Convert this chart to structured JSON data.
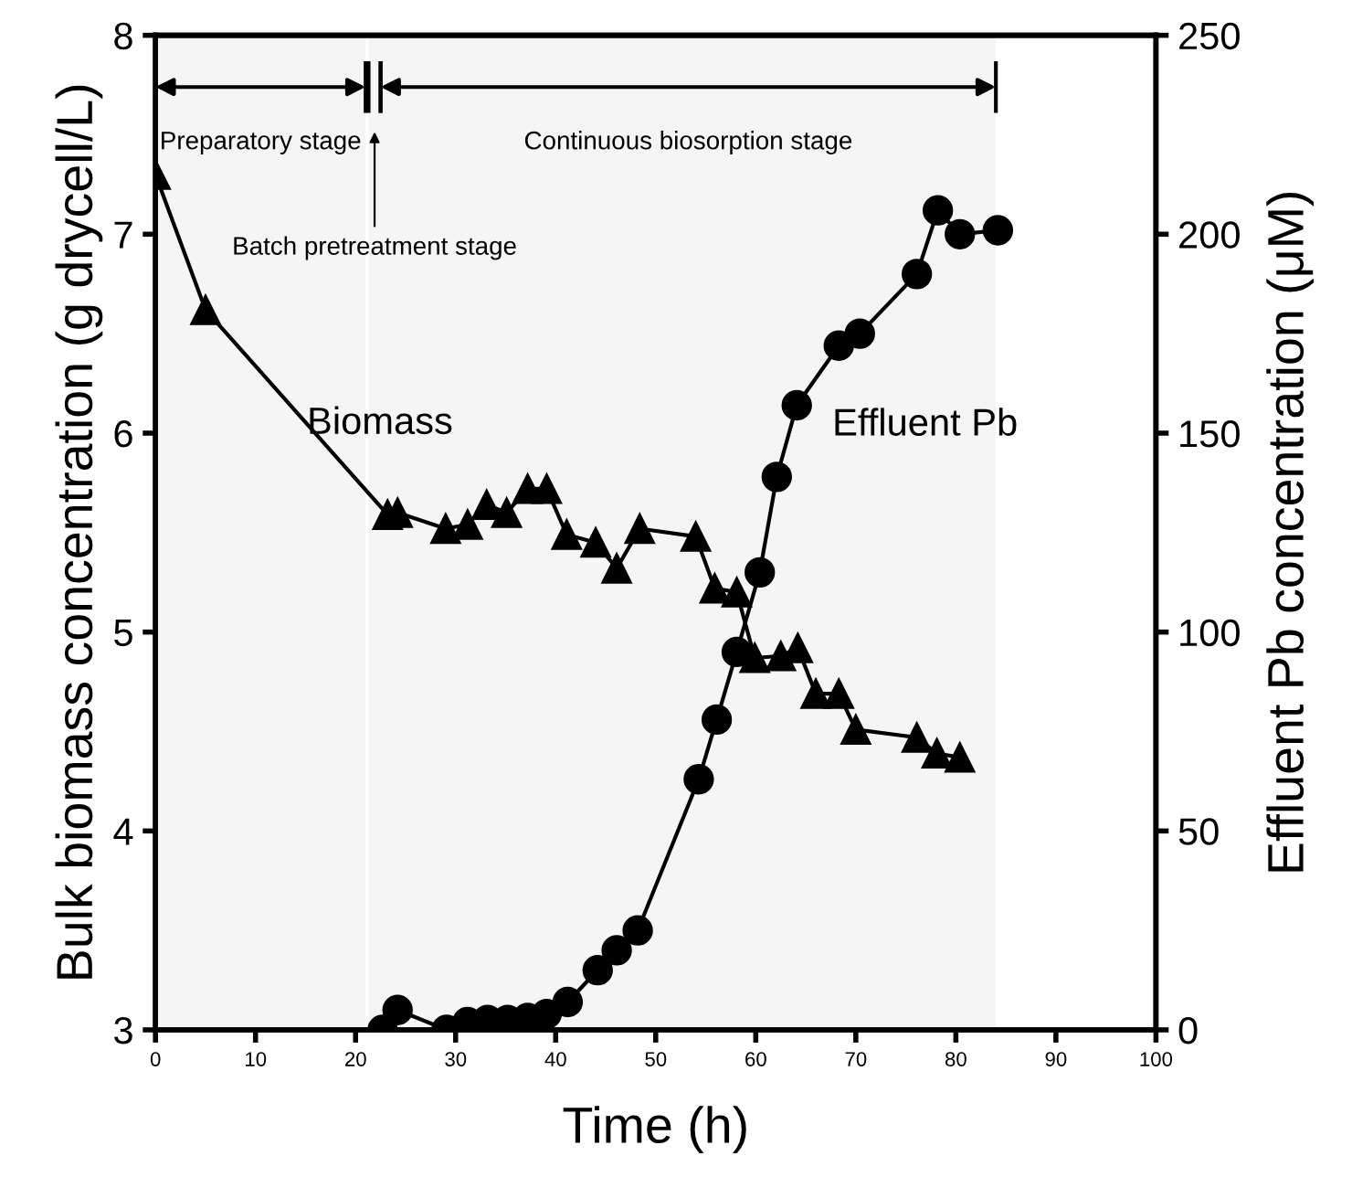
{
  "chart_data": {
    "type": "line",
    "xlabel": "Time (h)",
    "ylabel": "Bulk biomass concentration (g drycell/L)",
    "y2label": "Effluent Pb concentration (μM)",
    "xlim": [
      0,
      100
    ],
    "xticks": [
      0,
      10,
      20,
      30,
      40,
      50,
      60,
      70,
      80,
      90,
      100
    ],
    "ylim": [
      3,
      8
    ],
    "yticks": [
      3,
      4,
      5,
      6,
      7,
      8
    ],
    "y2lim": [
      0,
      250
    ],
    "y2ticks": [
      0,
      50,
      100,
      150,
      200,
      250
    ],
    "grid": false,
    "legend": false,
    "series": [
      {
        "name": "Biomass",
        "color": "#000000",
        "marker": "triangle",
        "x": [
          0,
          5,
          23.2,
          24.2,
          29,
          31.2,
          33.1,
          35.1,
          37.2,
          39.1,
          41.1,
          44,
          46.1,
          48.4,
          54,
          55.9,
          58.1,
          59.9,
          62.5,
          64.2,
          66,
          68.3,
          70,
          76.1,
          78.1,
          80.4
        ],
        "values": [
          7.3,
          6.62,
          5.59,
          5.6,
          5.52,
          5.54,
          5.64,
          5.6,
          5.72,
          5.72,
          5.49,
          5.45,
          5.32,
          5.52,
          5.48,
          5.22,
          5.2,
          4.87,
          4.88,
          4.92,
          4.69,
          4.69,
          4.51,
          4.47,
          4.39,
          4.37
        ]
      },
      {
        "name": "Effluent Pb",
        "color": "#000000",
        "marker": "circle",
        "axis": "y2",
        "x": [
          22.7,
          24.2,
          29.1,
          31.2,
          33.2,
          35.2,
          37.2,
          39.1,
          41.2,
          44.2,
          46.1,
          48.2,
          54.3,
          56.1,
          58.1,
          60.4,
          62.1,
          64.1,
          68.3,
          70.4,
          76.1,
          78.2,
          80.4,
          84.2
        ],
        "values": [
          0,
          5,
          0,
          2,
          2.5,
          2.5,
          3,
          4,
          7,
          15,
          20,
          25,
          63,
          78,
          95,
          115,
          139,
          157,
          172,
          175,
          190,
          206,
          200,
          201
        ]
      }
    ],
    "bands": [
      {
        "axis": "x",
        "from": 0,
        "to": 21,
        "label": "Preparatory stage",
        "color": "#f5f5f5"
      },
      {
        "axis": "x",
        "from": 21.3,
        "to": 22.5,
        "label": "Batch pretreatment stage",
        "color": "#f5f5f5"
      },
      {
        "axis": "x",
        "from": 22.5,
        "to": 84,
        "label": "Continuous biosorption stage",
        "color": "#f5f5f5"
      }
    ]
  }
}
